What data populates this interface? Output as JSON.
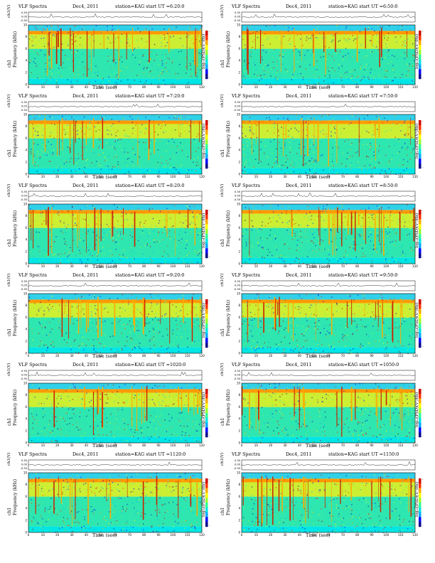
{
  "common": {
    "title": "VLF Spectra",
    "date": "Dec4, 2011",
    "station": "station=KAG",
    "ut_prefix": "start UT =",
    "y_label_top": "ch1(V)",
    "y_label_ch": "ch1",
    "y_label_freq": "Frequency (kHz)",
    "colorbar_label": "log₁₀(PSD)(V²/Hz)",
    "x_label": "Time (sec)",
    "x_ticks": [
      "0",
      "10",
      "20",
      "30",
      "40",
      "50",
      "60",
      "70",
      "80",
      "90",
      "100",
      "110",
      "120"
    ],
    "y_ticks": [
      "0",
      "2",
      "4",
      "6",
      "8",
      "10"
    ],
    "amp_ticks": [
      "0.30",
      "0.00",
      "-0.30"
    ],
    "colorbar_ticks": [
      "-",
      "-"
    ]
  },
  "chart_data": [
    {
      "type": "heatmap",
      "title": "VLF Spectra",
      "start_ut": "6:20:0",
      "xlim": [
        0,
        120
      ],
      "ylim": [
        0,
        10
      ],
      "xlabel": "Time (sec)",
      "ylabel": "Frequency (kHz)"
    },
    {
      "type": "heatmap",
      "title": "VLF Spectra",
      "start_ut": "6:50:0",
      "xlim": [
        0,
        120
      ],
      "ylim": [
        0,
        10
      ],
      "xlabel": "Time (sec)",
      "ylabel": "Frequency (kHz)"
    },
    {
      "type": "heatmap",
      "title": "VLF Spectra",
      "start_ut": "7:20:0",
      "xlim": [
        0,
        120
      ],
      "ylim": [
        0,
        10
      ],
      "xlabel": "Time (sec)",
      "ylabel": "Frequency (kHz)"
    },
    {
      "type": "heatmap",
      "title": "VLF Spectra",
      "start_ut": "7:50:0",
      "xlim": [
        0,
        120
      ],
      "ylim": [
        0,
        10
      ],
      "xlabel": "Time (sec)",
      "ylabel": "Frequency (kHz)"
    },
    {
      "type": "heatmap",
      "title": "VLF Spectra",
      "start_ut": "8:20:0",
      "xlim": [
        0,
        120
      ],
      "ylim": [
        0,
        10
      ],
      "xlabel": "Time (sec)",
      "ylabel": "Frequency (kHz)"
    },
    {
      "type": "heatmap",
      "title": "VLF Spectra",
      "start_ut": "8:50:0",
      "xlim": [
        0,
        120
      ],
      "ylim": [
        0,
        10
      ],
      "xlabel": "Time (sec)",
      "ylabel": "Frequency (kHz)"
    },
    {
      "type": "heatmap",
      "title": "VLF Spectra",
      "start_ut": "9:20:0",
      "xlim": [
        0,
        120
      ],
      "ylim": [
        0,
        10
      ],
      "xlabel": "Time (sec)",
      "ylabel": "Frequency (kHz)"
    },
    {
      "type": "heatmap",
      "title": "VLF Spectra",
      "start_ut": "9:50:0",
      "xlim": [
        0,
        120
      ],
      "ylim": [
        0,
        10
      ],
      "xlabel": "Time (sec)",
      "ylabel": "Frequency (kHz)"
    },
    {
      "type": "heatmap",
      "title": "VLF Spectra",
      "start_ut": "1020:0",
      "xlim": [
        0,
        120
      ],
      "ylim": [
        0,
        10
      ],
      "xlabel": "Time (sec)",
      "ylabel": "Frequency (kHz)"
    },
    {
      "type": "heatmap",
      "title": "VLF Spectra",
      "start_ut": "1050:0",
      "xlim": [
        0,
        120
      ],
      "ylim": [
        0,
        10
      ],
      "xlabel": "Time (sec)",
      "ylabel": "Frequency (kHz)"
    },
    {
      "type": "heatmap",
      "title": "VLF Spectra",
      "start_ut": "1120:0",
      "xlim": [
        0,
        120
      ],
      "ylim": [
        0,
        10
      ],
      "xlabel": "Time (sec)",
      "ylabel": "Frequency (kHz)"
    },
    {
      "type": "heatmap",
      "title": "VLF Spectra",
      "start_ut": "1150:0",
      "xlim": [
        0,
        120
      ],
      "ylim": [
        0,
        10
      ],
      "xlabel": "Time (sec)",
      "ylabel": "Frequency (kHz)"
    }
  ]
}
